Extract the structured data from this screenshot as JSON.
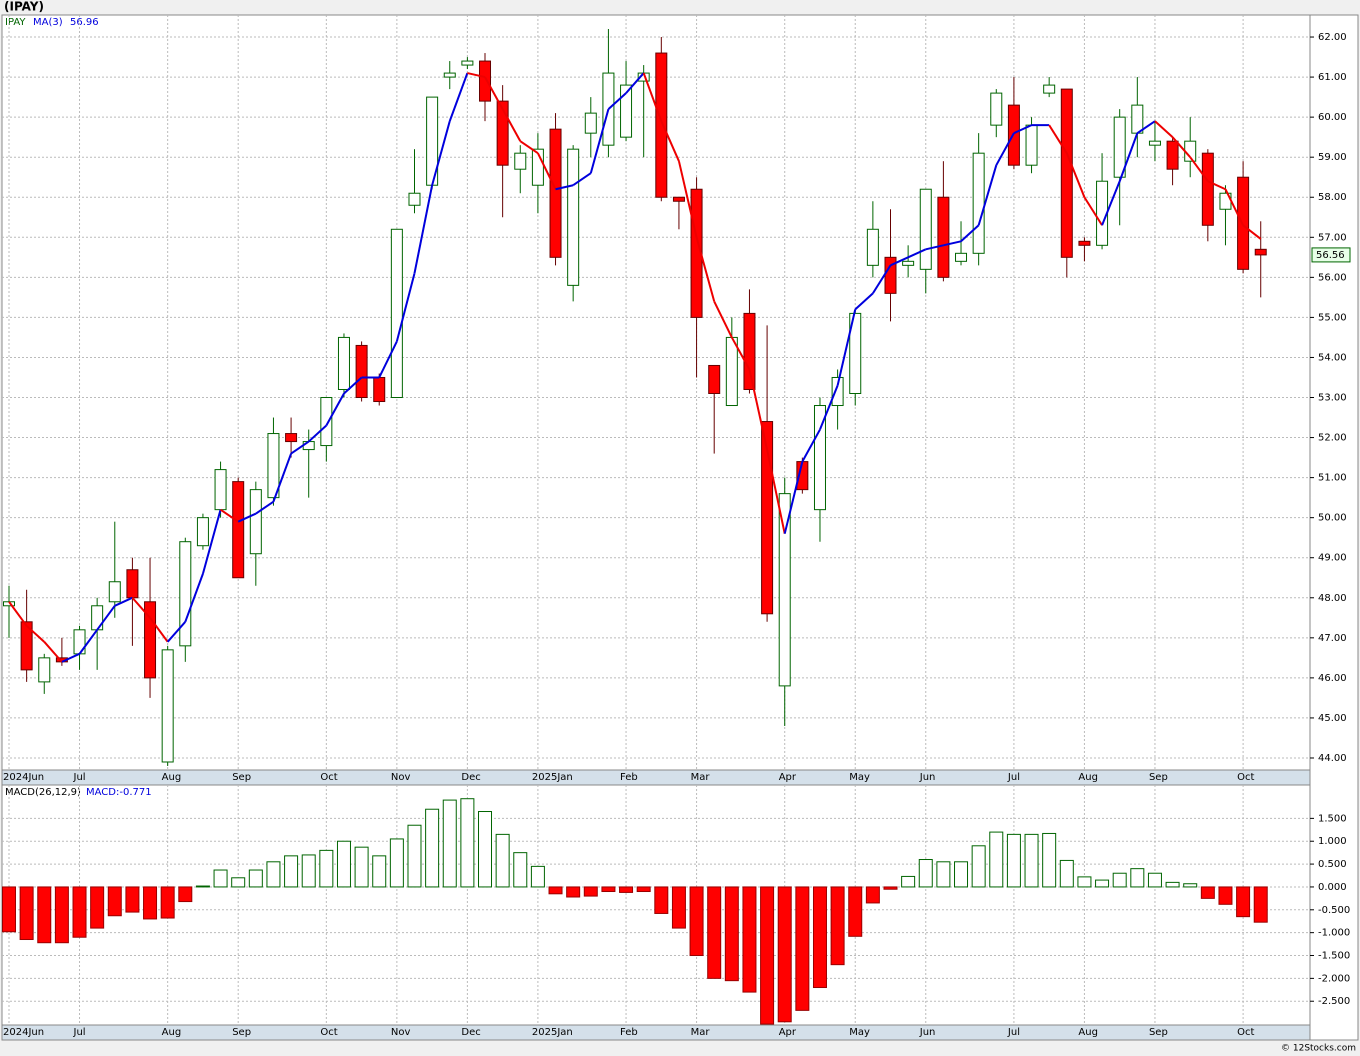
{
  "header": {
    "title": "(IPAY)"
  },
  "chart_data": [
    {
      "type": "candlestick",
      "categories": [
        "2024Jun",
        null,
        null,
        null,
        "Jul",
        null,
        null,
        null,
        null,
        "Aug",
        null,
        null,
        null,
        "Sep",
        null,
        null,
        null,
        null,
        "Oct",
        null,
        null,
        null,
        "Nov",
        null,
        null,
        null,
        "Dec",
        null,
        null,
        null,
        "2025Jan",
        null,
        null,
        null,
        null,
        "Feb",
        null,
        null,
        null,
        "Mar",
        null,
        null,
        null,
        null,
        "Apr",
        null,
        null,
        null,
        "May",
        null,
        null,
        null,
        "Jun",
        null,
        null,
        null,
        null,
        "Jul",
        null,
        null,
        null,
        "Aug",
        null,
        null,
        null,
        "Sep",
        null,
        null,
        null,
        null,
        "Oct",
        null
      ],
      "series": [
        {
          "name": "IPAY",
          "up_color": "#006400",
          "down_color": "#ff0000",
          "open": [
            47.8,
            47.4,
            45.9,
            46.5,
            46.6,
            47.2,
            47.9,
            48.7,
            47.9,
            43.9,
            46.8,
            49.3,
            50.2,
            50.9,
            49.1,
            50.5,
            52.1,
            51.7,
            51.8,
            53.2,
            54.3,
            53.5,
            53.0,
            57.8,
            58.3,
            61.0,
            61.3,
            61.4,
            60.4,
            58.7,
            58.3,
            59.7,
            55.8,
            59.6,
            59.3,
            59.5,
            60.9,
            61.6,
            58.0,
            58.2,
            53.8,
            52.8,
            55.1,
            52.4,
            45.8,
            51.4,
            50.2,
            52.8,
            53.1,
            56.3,
            56.5,
            56.3,
            56.2,
            58.0,
            56.4,
            56.6,
            59.8,
            60.3,
            58.8,
            60.6,
            60.7,
            56.9,
            56.8,
            58.5,
            59.6,
            59.3,
            59.4,
            58.9,
            59.1,
            57.7,
            58.5,
            56.7
          ],
          "high": [
            48.3,
            48.2,
            46.6,
            47.0,
            47.3,
            48.0,
            49.9,
            49.0,
            49.0,
            46.8,
            49.5,
            50.1,
            51.4,
            51.0,
            50.9,
            52.5,
            52.5,
            52.2,
            53.0,
            54.6,
            54.4,
            53.6,
            57.2,
            59.2,
            60.5,
            61.4,
            61.5,
            61.6,
            60.8,
            59.3,
            59.6,
            60.1,
            59.3,
            60.5,
            62.2,
            61.4,
            61.3,
            62.0,
            58.0,
            58.5,
            53.8,
            55.0,
            55.7,
            54.8,
            51.0,
            51.5,
            53.0,
            53.7,
            55.2,
            57.9,
            57.7,
            56.8,
            58.2,
            58.9,
            57.4,
            59.6,
            60.7,
            61.0,
            60.0,
            61.0,
            60.7,
            57.0,
            59.1,
            60.2,
            61.0,
            59.9,
            59.5,
            60.0,
            59.2,
            58.3,
            58.9,
            57.4
          ],
          "low": [
            47.0,
            45.9,
            45.6,
            46.3,
            46.2,
            46.2,
            47.5,
            46.8,
            45.5,
            43.8,
            46.4,
            49.2,
            50.0,
            48.5,
            48.3,
            50.3,
            51.5,
            50.5,
            51.4,
            53.0,
            52.9,
            52.8,
            53.0,
            57.6,
            58.2,
            60.7,
            61.2,
            59.9,
            57.5,
            58.1,
            57.6,
            56.3,
            55.4,
            59.0,
            59.0,
            59.4,
            59.0,
            57.9,
            57.2,
            53.5,
            51.6,
            52.8,
            53.1,
            47.4,
            44.8,
            50.6,
            49.4,
            52.2,
            52.8,
            56.0,
            54.9,
            56.0,
            55.6,
            55.9,
            56.3,
            56.3,
            59.5,
            58.7,
            58.6,
            60.5,
            56.0,
            56.4,
            56.7,
            57.3,
            59.0,
            58.9,
            58.3,
            58.5,
            56.9,
            56.8,
            56.1,
            55.5
          ],
          "close": [
            47.9,
            46.2,
            46.5,
            46.4,
            47.2,
            47.8,
            48.4,
            48.0,
            46.0,
            46.7,
            49.4,
            50.0,
            51.2,
            48.5,
            50.7,
            52.1,
            51.9,
            51.9,
            53.0,
            54.5,
            53.0,
            52.9,
            57.2,
            58.1,
            60.5,
            61.1,
            61.4,
            60.4,
            58.8,
            59.1,
            59.2,
            56.5,
            59.2,
            60.1,
            61.1,
            60.8,
            61.1,
            58.0,
            57.9,
            55.0,
            53.1,
            54.5,
            53.2,
            47.6,
            50.6,
            50.7,
            52.8,
            53.5,
            55.1,
            57.2,
            55.6,
            56.4,
            58.2,
            56.0,
            56.6,
            59.1,
            60.6,
            58.8,
            59.8,
            60.8,
            56.5,
            56.8,
            58.4,
            60.0,
            60.3,
            59.4,
            58.7,
            59.4,
            57.3,
            58.1,
            56.2,
            56.56
          ]
        },
        {
          "name": "MA(3)",
          "type": "line",
          "up_color": "#0000dd",
          "down_color": "#ee0000",
          "values": [
            47.9,
            47.3,
            46.9,
            46.4,
            46.6,
            47.2,
            47.8,
            48.0,
            47.5,
            46.9,
            47.4,
            48.6,
            50.2,
            49.9,
            50.1,
            50.4,
            51.6,
            51.9,
            52.3,
            53.1,
            53.5,
            53.5,
            54.4,
            56.1,
            58.3,
            59.9,
            61.1,
            61.0,
            60.2,
            59.4,
            59.1,
            58.2,
            58.3,
            58.6,
            60.2,
            60.6,
            61.1,
            59.9,
            58.9,
            57.0,
            55.4,
            54.5,
            53.7,
            51.7,
            49.6,
            51.4,
            52.2,
            53.3,
            55.2,
            55.6,
            56.3,
            56.5,
            56.7,
            56.8,
            56.9,
            57.3,
            58.8,
            59.6,
            59.8,
            59.8,
            59.1,
            58.0,
            57.3,
            58.4,
            59.6,
            59.9,
            59.5,
            59.0,
            58.4,
            58.2,
            57.3,
            56.96
          ]
        }
      ],
      "ylim": [
        43.7,
        62.55
      ],
      "yticks": [
        {
          "value": 44,
          "label": "44.00"
        },
        {
          "value": 45,
          "label": "45.00"
        },
        {
          "value": 46,
          "label": "46.00"
        },
        {
          "value": 47,
          "label": "47.00"
        },
        {
          "value": 48,
          "label": "48.00"
        },
        {
          "value": 49,
          "label": "49.00"
        },
        {
          "value": 50,
          "label": "50.00"
        },
        {
          "value": 51,
          "label": "51.00"
        },
        {
          "value": 52,
          "label": "52.00"
        },
        {
          "value": 53,
          "label": "53.00"
        },
        {
          "value": 54,
          "label": "54.00"
        },
        {
          "value": 55,
          "label": "55.00"
        },
        {
          "value": 56,
          "label": "56.00"
        },
        {
          "value": 57,
          "label": "57.00"
        },
        {
          "value": 58,
          "label": "58.00"
        },
        {
          "value": 59,
          "label": "59.00"
        },
        {
          "value": 60,
          "label": "60.00"
        },
        {
          "value": 61,
          "label": "61.00"
        },
        {
          "value": 62,
          "label": "62.00"
        }
      ],
      "grid": true
    },
    {
      "type": "bar",
      "categories": [
        "2024Jun",
        null,
        null,
        null,
        "Jul",
        null,
        null,
        null,
        null,
        "Aug",
        null,
        null,
        null,
        "Sep",
        null,
        null,
        null,
        null,
        "Oct",
        null,
        null,
        null,
        "Nov",
        null,
        null,
        null,
        "Dec",
        null,
        null,
        null,
        "2025Jan",
        null,
        null,
        null,
        null,
        "Feb",
        null,
        null,
        null,
        "Mar",
        null,
        null,
        null,
        null,
        "Apr",
        null,
        null,
        null,
        "May",
        null,
        null,
        null,
        "Jun",
        null,
        null,
        null,
        null,
        "Jul",
        null,
        null,
        null,
        "Aug",
        null,
        null,
        null,
        "Sep",
        null,
        null,
        null,
        null,
        "Oct",
        null
      ],
      "series": [
        {
          "name": "MACD(26,12,9)",
          "last_label": "MACD:-0.771",
          "up_color": "#006400",
          "down_color": "#ff0000",
          "values": [
            -0.98,
            -1.15,
            -1.22,
            -1.22,
            -1.1,
            -0.9,
            -0.63,
            -0.55,
            -0.7,
            -0.68,
            -0.32,
            0.02,
            0.37,
            0.2,
            0.37,
            0.55,
            0.68,
            0.7,
            0.8,
            1.0,
            0.87,
            0.68,
            1.05,
            1.35,
            1.7,
            1.9,
            1.93,
            1.65,
            1.15,
            0.75,
            0.45,
            -0.15,
            -0.22,
            -0.2,
            -0.1,
            -0.12,
            -0.1,
            -0.58,
            -0.9,
            -1.5,
            -2.0,
            -2.05,
            -2.3,
            -3.0,
            -2.95,
            -2.7,
            -2.2,
            -1.7,
            -1.08,
            -0.35,
            -0.05,
            0.23,
            0.6,
            0.55,
            0.55,
            0.9,
            1.2,
            1.15,
            1.15,
            1.17,
            0.58,
            0.22,
            0.15,
            0.3,
            0.4,
            0.3,
            0.1,
            0.07,
            -0.25,
            -0.38,
            -0.65,
            -0.771
          ]
        }
      ],
      "ylim": [
        -3.02,
        2.23
      ],
      "yticks": [
        {
          "value": -2.5,
          "label": "-2.500"
        },
        {
          "value": -2,
          "label": "-2.000"
        },
        {
          "value": -1.5,
          "label": "-1.500"
        },
        {
          "value": -1,
          "label": "-1.000"
        },
        {
          "value": -0.5,
          "label": "-0.500"
        },
        {
          "value": 0,
          "label": "0.000"
        },
        {
          "value": 0.5,
          "label": "0.500"
        },
        {
          "value": 1,
          "label": "1.000"
        },
        {
          "value": 1.5,
          "label": "1.500"
        }
      ],
      "grid": true
    }
  ],
  "footer": "© 12Stocks.com"
}
